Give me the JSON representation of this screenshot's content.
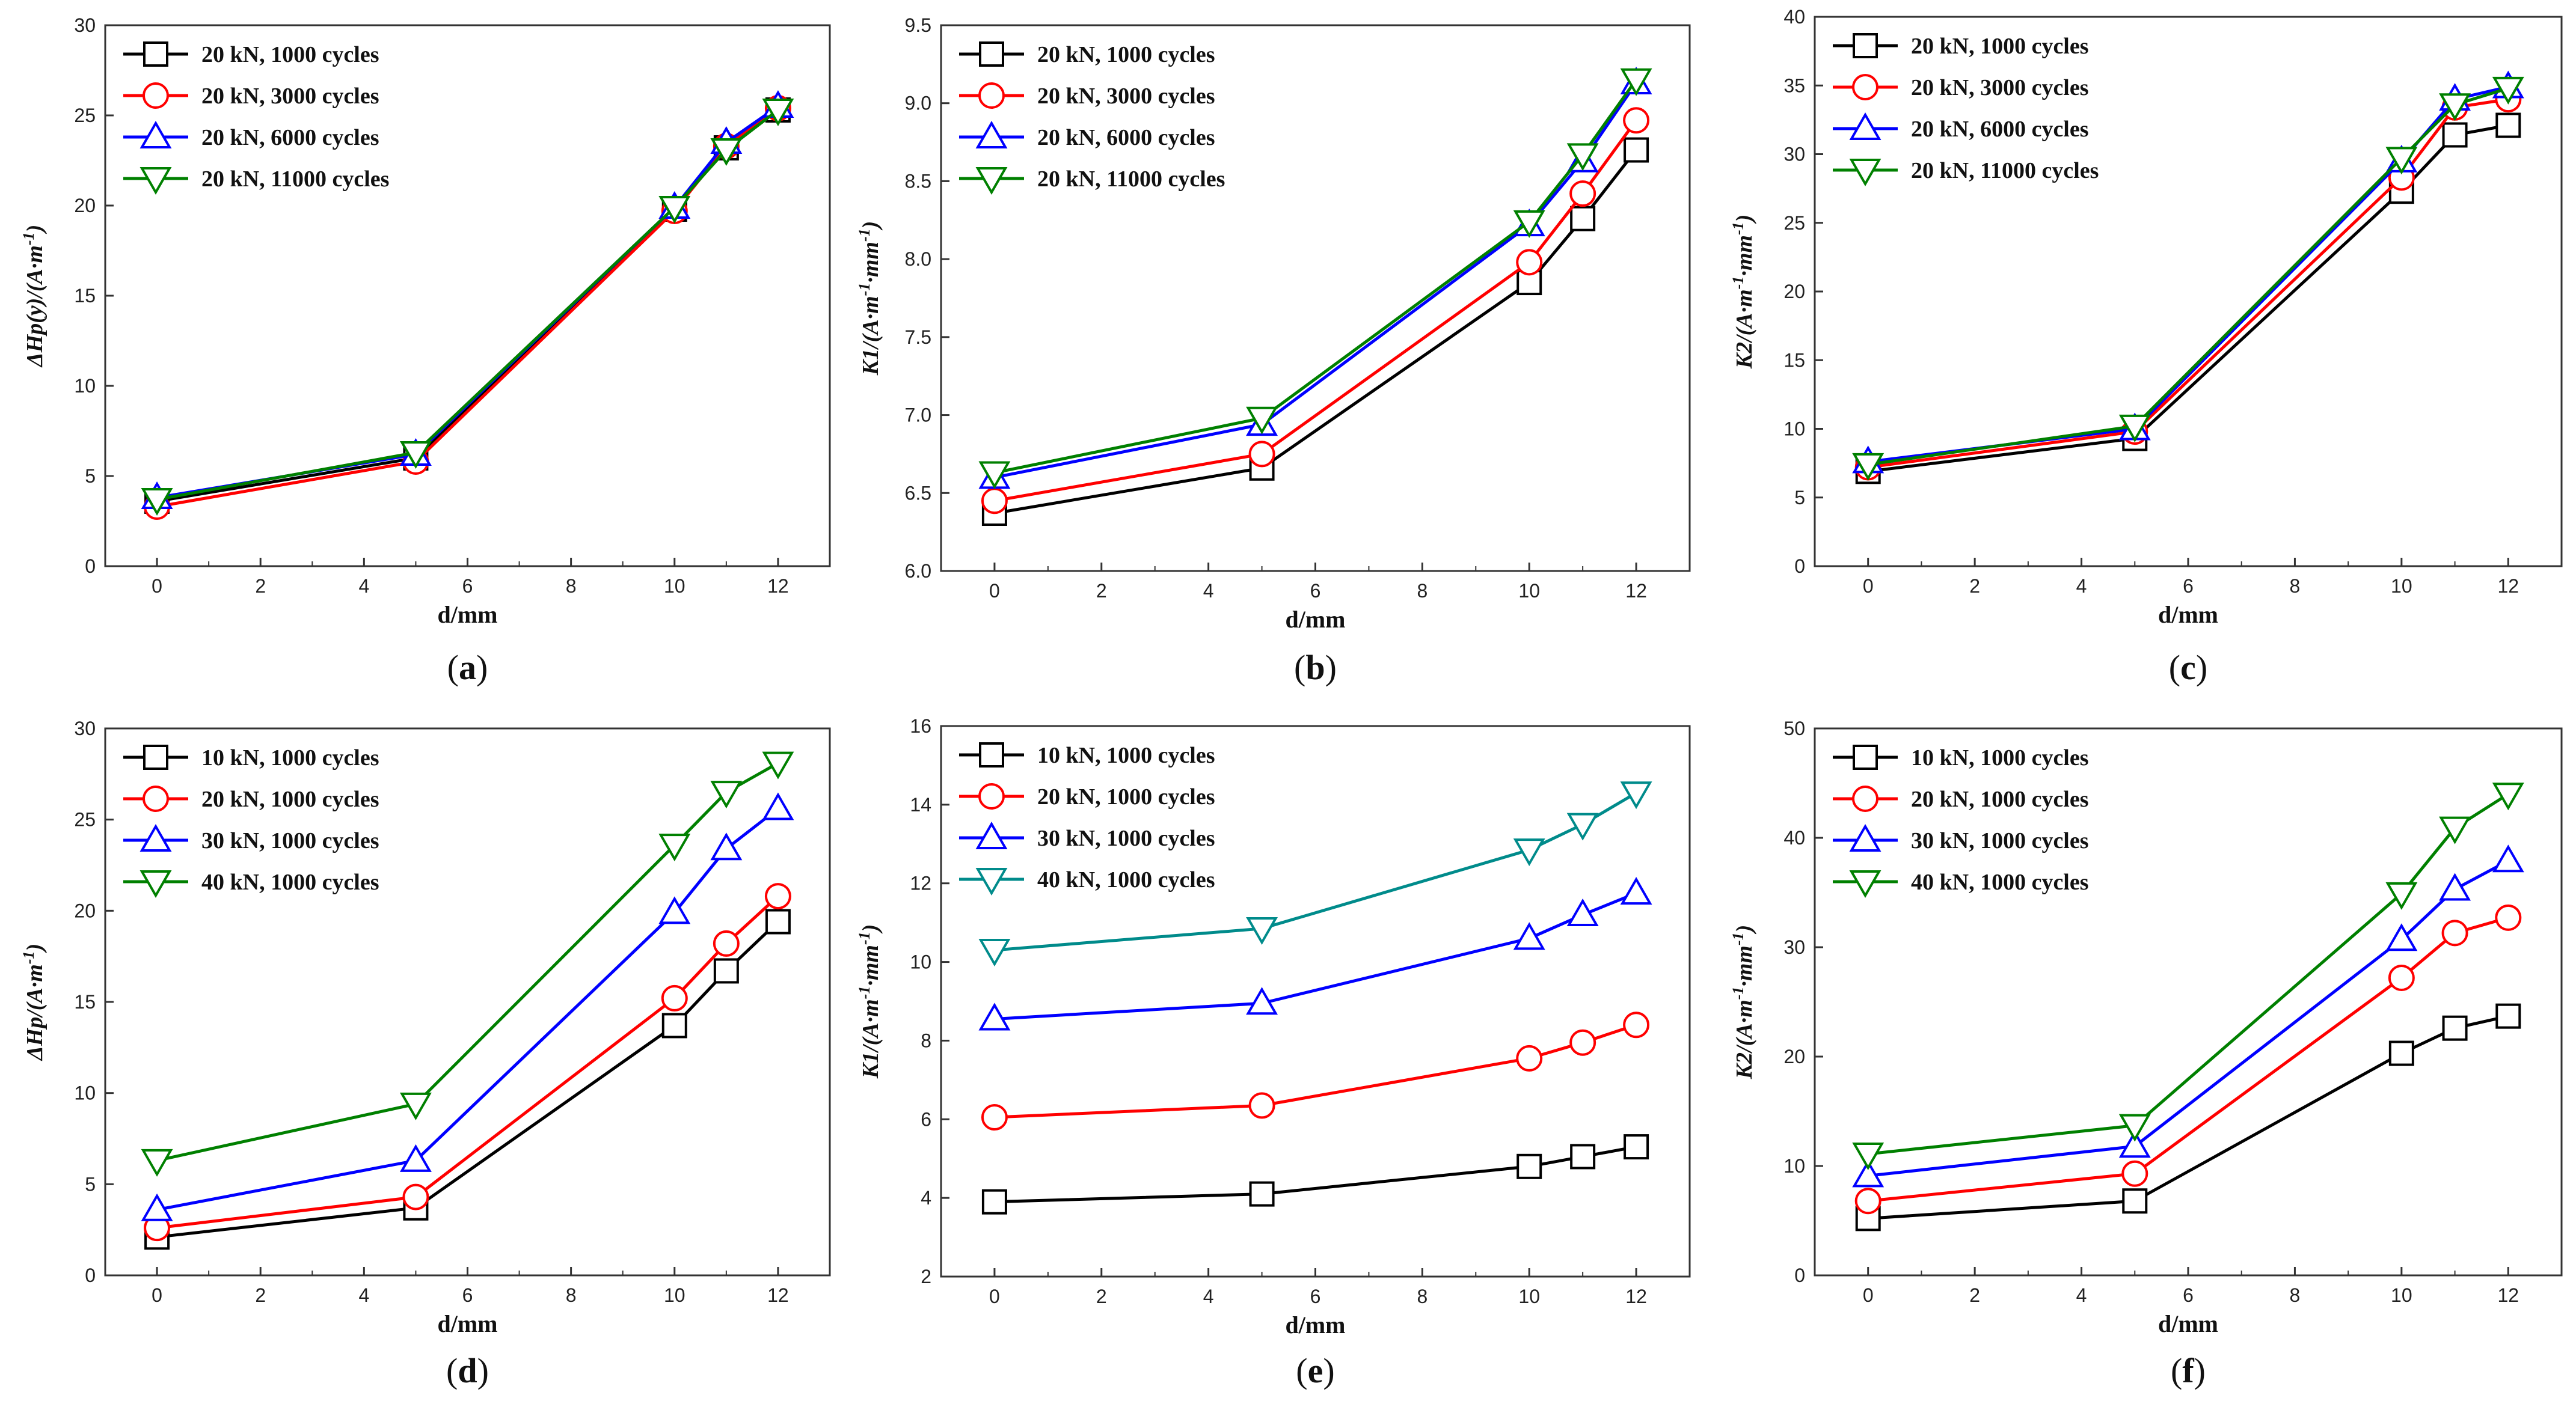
{
  "chart_data": [
    {
      "panel": "a",
      "caption": "(a)",
      "type": "line",
      "xlabel": "d/mm",
      "ylabel": "ΔHp(y)/(A·m⁻¹)",
      "xlim": [
        -1,
        13
      ],
      "ylim": [
        0,
        30
      ],
      "xticks": [
        0,
        2,
        4,
        6,
        8,
        10,
        12
      ],
      "yticks": [
        0,
        5,
        10,
        15,
        20,
        25,
        30
      ],
      "x": [
        0,
        5,
        10,
        11,
        12
      ],
      "legend_position": "top-left",
      "series": [
        {
          "name": "20 kN, 1000 cycles",
          "color": "#000000",
          "marker": "square",
          "values": [
            3.6,
            6.0,
            19.8,
            23.2,
            25.3
          ]
        },
        {
          "name": "20 kN, 3000 cycles",
          "color": "#ff0000",
          "marker": "circle",
          "values": [
            3.3,
            5.8,
            19.7,
            23.3,
            25.4
          ]
        },
        {
          "name": "20 kN, 6000 cycles",
          "color": "#0000ff",
          "marker": "triangle-up",
          "values": [
            3.8,
            6.2,
            19.9,
            23.5,
            25.5
          ]
        },
        {
          "name": "20 kN, 11000 cycles",
          "color": "#008000",
          "marker": "triangle-down",
          "values": [
            3.7,
            6.3,
            19.9,
            23.1,
            25.3
          ]
        }
      ]
    },
    {
      "panel": "b",
      "caption": "(b)",
      "type": "line",
      "xlabel": "d/mm",
      "ylabel": "K1/(A·m⁻¹·mm⁻¹)",
      "xlim": [
        -1,
        13
      ],
      "ylim": [
        6.0,
        9.5
      ],
      "xticks": [
        0,
        2,
        4,
        6,
        8,
        10,
        12
      ],
      "yticks": [
        6.0,
        6.5,
        7.0,
        7.5,
        8.0,
        8.5,
        9.0,
        9.5
      ],
      "x": [
        0,
        5,
        10,
        11,
        12
      ],
      "legend_position": "top-left",
      "series": [
        {
          "name": "20 kN, 1000 cycles",
          "color": "#000000",
          "marker": "square",
          "values": [
            6.37,
            6.66,
            7.85,
            8.26,
            8.7
          ]
        },
        {
          "name": "20 kN, 3000 cycles",
          "color": "#ff0000",
          "marker": "circle",
          "values": [
            6.45,
            6.75,
            7.98,
            8.42,
            8.89
          ]
        },
        {
          "name": "20 kN, 6000 cycles",
          "color": "#0000ff",
          "marker": "triangle-up",
          "values": [
            6.6,
            6.94,
            8.22,
            8.63,
            9.13
          ]
        },
        {
          "name": "20 kN, 11000 cycles",
          "color": "#008000",
          "marker": "triangle-down",
          "values": [
            6.63,
            6.98,
            8.24,
            8.67,
            9.15
          ]
        }
      ]
    },
    {
      "panel": "c",
      "caption": "(c)",
      "type": "line",
      "xlabel": "d/mm",
      "ylabel": "K2/(A·m⁻¹·mm⁻¹)",
      "xlim": [
        -1,
        13
      ],
      "ylim": [
        0,
        40
      ],
      "xticks": [
        0,
        2,
        4,
        6,
        8,
        10,
        12
      ],
      "yticks": [
        0,
        5,
        10,
        15,
        20,
        25,
        30,
        35,
        40
      ],
      "x": [
        0,
        5,
        10,
        11,
        12
      ],
      "legend_position": "top-left",
      "series": [
        {
          "name": "20 kN, 1000 cycles",
          "color": "#000000",
          "marker": "square",
          "values": [
            6.9,
            9.3,
            27.3,
            31.4,
            32.1
          ]
        },
        {
          "name": "20 kN, 3000 cycles",
          "color": "#ff0000",
          "marker": "circle",
          "values": [
            7.2,
            9.8,
            28.3,
            33.4,
            34.0
          ]
        },
        {
          "name": "20 kN, 6000 cycles",
          "color": "#0000ff",
          "marker": "triangle-up",
          "values": [
            7.6,
            10.0,
            29.5,
            34.0,
            34.9
          ]
        },
        {
          "name": "20 kN, 11000 cycles",
          "color": "#008000",
          "marker": "triangle-down",
          "values": [
            7.4,
            10.2,
            29.7,
            33.6,
            34.8
          ]
        }
      ]
    },
    {
      "panel": "d",
      "caption": "(d)",
      "type": "line",
      "xlabel": "d/mm",
      "ylabel": "ΔHp/(A·m⁻¹)",
      "xlim": [
        -1,
        13
      ],
      "ylim": [
        0,
        30
      ],
      "xticks": [
        0,
        2,
        4,
        6,
        8,
        10,
        12
      ],
      "yticks": [
        0,
        5,
        10,
        15,
        20,
        25,
        30
      ],
      "x": [
        0,
        5,
        10,
        11,
        12
      ],
      "legend_position": "top-left",
      "series": [
        {
          "name": "10 kN, 1000 cycles",
          "color": "#000000",
          "marker": "square",
          "values": [
            2.1,
            3.7,
            13.7,
            16.7,
            19.4
          ]
        },
        {
          "name": "20 kN, 1000 cycles",
          "color": "#ff0000",
          "marker": "circle",
          "values": [
            2.6,
            4.3,
            15.2,
            18.2,
            20.8
          ]
        },
        {
          "name": "30 kN, 1000 cycles",
          "color": "#0000ff",
          "marker": "triangle-up",
          "values": [
            3.6,
            6.3,
            19.9,
            23.4,
            25.6
          ]
        },
        {
          "name": "40 kN, 1000 cycles",
          "color": "#008000",
          "marker": "triangle-down",
          "values": [
            6.3,
            9.4,
            23.6,
            26.5,
            28.1
          ]
        }
      ]
    },
    {
      "panel": "e",
      "caption": "(e)",
      "type": "line",
      "xlabel": "d/mm",
      "ylabel": "K1/(A·m⁻¹·mm⁻¹)",
      "xlim": [
        -1,
        13
      ],
      "ylim": [
        2,
        16
      ],
      "xticks": [
        0,
        2,
        4,
        6,
        8,
        10,
        12
      ],
      "yticks": [
        2,
        4,
        6,
        8,
        10,
        12,
        14,
        16
      ],
      "x": [
        0,
        5,
        10,
        11,
        12
      ],
      "legend_position": "top-left",
      "series": [
        {
          "name": "10 kN, 1000 cycles",
          "color": "#000000",
          "marker": "square",
          "values": [
            3.9,
            4.1,
            4.8,
            5.05,
            5.3
          ]
        },
        {
          "name": "20 kN, 1000 cycles",
          "color": "#ff0000",
          "marker": "circle",
          "values": [
            6.05,
            6.35,
            7.55,
            7.95,
            8.4
          ]
        },
        {
          "name": "30 kN, 1000 cycles",
          "color": "#0000ff",
          "marker": "triangle-up",
          "values": [
            8.55,
            8.95,
            10.6,
            11.2,
            11.75
          ]
        },
        {
          "name": "40 kN, 1000 cycles",
          "color": "#008b8b",
          "marker": "triangle-down",
          "values": [
            10.3,
            10.85,
            12.85,
            13.5,
            14.3
          ]
        }
      ]
    },
    {
      "panel": "f",
      "caption": "(f)",
      "type": "line",
      "xlabel": "d/mm",
      "ylabel": "K2/(A·m⁻¹·mm⁻¹)",
      "xlim": [
        -1,
        13
      ],
      "ylim": [
        0,
        50
      ],
      "xticks": [
        0,
        2,
        4,
        6,
        8,
        10,
        12
      ],
      "yticks": [
        0,
        10,
        20,
        30,
        40,
        50
      ],
      "x": [
        0,
        5,
        10,
        11,
        12
      ],
      "legend_position": "top-left",
      "series": [
        {
          "name": "10 kN, 1000 cycles",
          "color": "#000000",
          "marker": "square",
          "values": [
            5.2,
            6.8,
            20.3,
            22.6,
            23.7
          ]
        },
        {
          "name": "20 kN, 1000 cycles",
          "color": "#ff0000",
          "marker": "circle",
          "values": [
            6.8,
            9.3,
            27.2,
            31.3,
            32.7
          ]
        },
        {
          "name": "30 kN, 1000 cycles",
          "color": "#0000ff",
          "marker": "triangle-up",
          "values": [
            9.1,
            11.8,
            30.7,
            35.3,
            37.9
          ]
        },
        {
          "name": "40 kN, 1000 cycles",
          "color": "#008000",
          "marker": "triangle-down",
          "values": [
            11.1,
            13.7,
            34.9,
            40.9,
            44.0
          ]
        }
      ]
    }
  ]
}
